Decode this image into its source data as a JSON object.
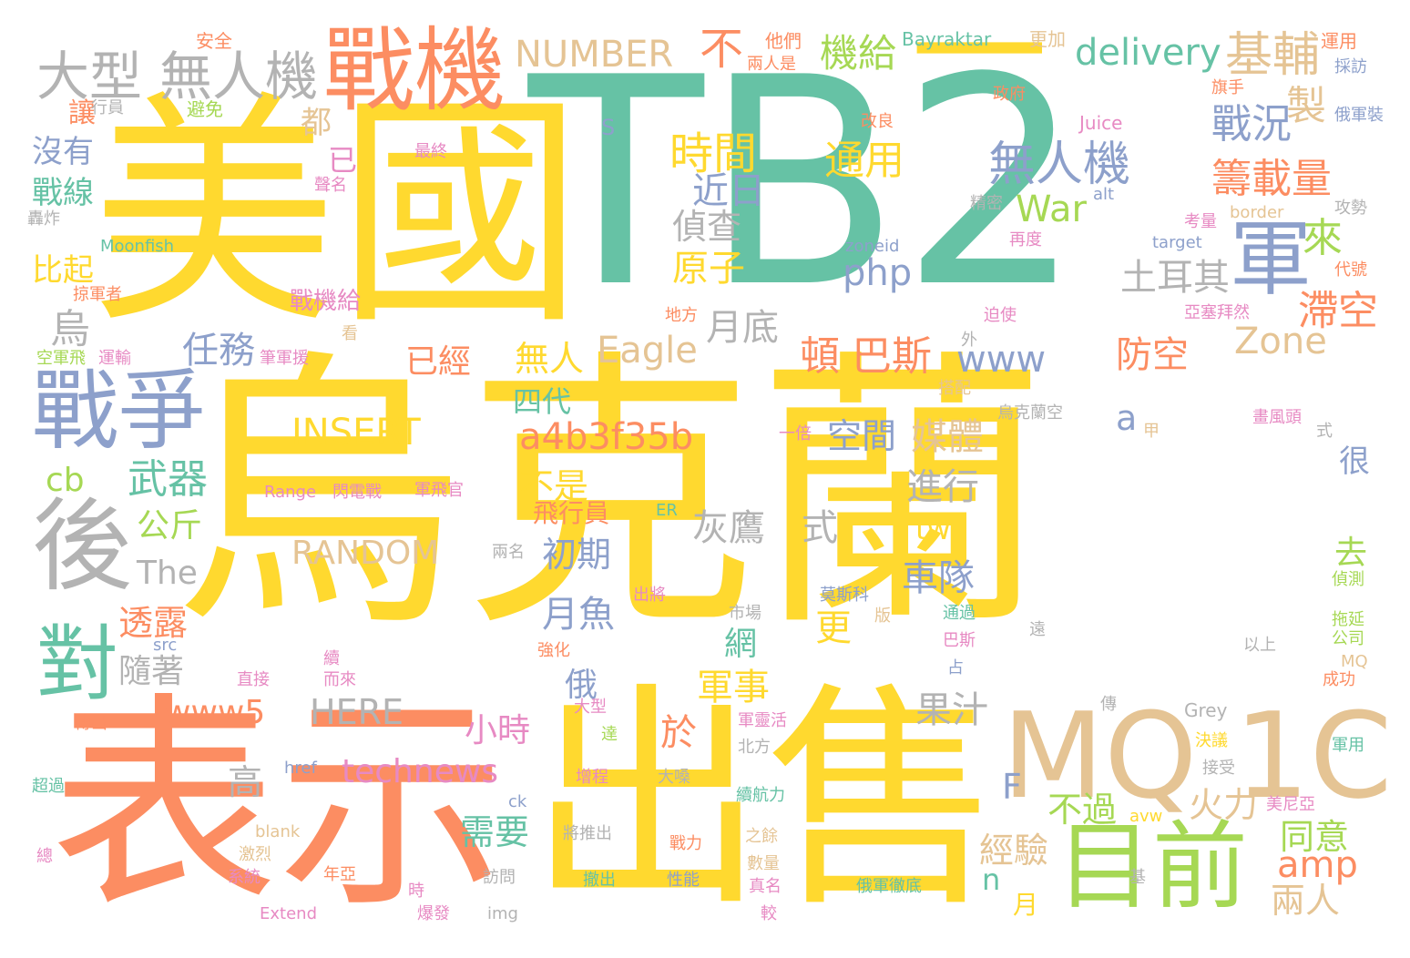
{
  "colors": {
    "yellow": "#FFD92F",
    "green": "#66C2A5",
    "orange": "#FC8D62",
    "blue": "#8DA0CB",
    "gray": "#B3B3B3",
    "tan": "#E5C494",
    "lime": "#A6D854",
    "pink": "#E78AC3"
  },
  "words": [
    {
      "text": "烏克蘭",
      "color": "yellow"
    },
    {
      "text": "TB2",
      "color": "green"
    },
    {
      "text": "美國",
      "color": "yellow"
    },
    {
      "text": "表示",
      "color": "orange"
    },
    {
      "text": "出售",
      "color": "yellow"
    },
    {
      "text": "MQ",
      "color": "tan"
    },
    {
      "text": "1C",
      "color": "tan"
    },
    {
      "text": "戰機",
      "color": "orange"
    },
    {
      "text": "後",
      "color": "gray"
    },
    {
      "text": "戰爭",
      "color": "blue"
    },
    {
      "text": "目前",
      "color": "lime"
    },
    {
      "text": "軍",
      "color": "blue"
    },
    {
      "text": "一",
      "color": "yellow"
    },
    {
      "text": "對",
      "color": "green"
    },
    {
      "text": "大型",
      "color": "gray"
    },
    {
      "text": "無人機",
      "color": "gray"
    },
    {
      "text": "基輔",
      "color": "tan"
    },
    {
      "text": "無人機",
      "color": "blue"
    },
    {
      "text": "NUMBER",
      "color": "tan"
    },
    {
      "text": "delivery",
      "color": "green"
    },
    {
      "text": "機給",
      "color": "lime"
    },
    {
      "text": "不",
      "color": "orange"
    },
    {
      "text": "時間",
      "color": "yellow"
    },
    {
      "text": "戰況",
      "color": "blue"
    },
    {
      "text": "籌載量",
      "color": "orange"
    },
    {
      "text": "製",
      "color": "tan"
    },
    {
      "text": "通用",
      "color": "yellow"
    },
    {
      "text": "近日",
      "color": "blue"
    },
    {
      "text": "War",
      "color": "lime"
    },
    {
      "text": "偵查",
      "color": "gray"
    },
    {
      "text": "原子",
      "color": "yellow"
    },
    {
      "text": "php",
      "color": "blue"
    },
    {
      "text": "土耳其",
      "color": "gray"
    },
    {
      "text": "來",
      "color": "lime"
    },
    {
      "text": "滯空",
      "color": "orange"
    },
    {
      "text": "月底",
      "color": "gray"
    },
    {
      "text": "頓",
      "color": "orange"
    },
    {
      "text": "巴斯",
      "color": "orange"
    },
    {
      "text": "www",
      "color": "blue"
    },
    {
      "text": "Zone",
      "color": "tan"
    },
    {
      "text": "防空",
      "color": "orange"
    },
    {
      "text": "Eagle",
      "color": "tan"
    },
    {
      "text": "無人",
      "color": "yellow"
    },
    {
      "text": "已經",
      "color": "orange"
    },
    {
      "text": "任務",
      "color": "blue"
    },
    {
      "text": "烏",
      "color": "gray"
    },
    {
      "text": "INSERT",
      "color": "yellow"
    },
    {
      "text": "a4b3f35b",
      "color": "orange"
    },
    {
      "text": "空間",
      "color": "blue"
    },
    {
      "text": "媒體",
      "color": "tan"
    },
    {
      "text": "四代",
      "color": "green"
    },
    {
      "text": "a",
      "color": "blue"
    },
    {
      "text": "武器",
      "color": "green"
    },
    {
      "text": "cb",
      "color": "lime"
    },
    {
      "text": "不是",
      "color": "yellow"
    },
    {
      "text": "進行",
      "color": "gray"
    },
    {
      "text": "公斤",
      "color": "lime"
    },
    {
      "text": "灰鷹",
      "color": "gray"
    },
    {
      "text": "式",
      "color": "gray"
    },
    {
      "text": "飛行員",
      "color": "orange"
    },
    {
      "text": "tw",
      "color": "yellow"
    },
    {
      "text": "RANDOM",
      "color": "tan"
    },
    {
      "text": "初期",
      "color": "blue"
    },
    {
      "text": "車隊",
      "color": "blue"
    },
    {
      "text": "The",
      "color": "gray"
    },
    {
      "text": "去",
      "color": "lime"
    },
    {
      "text": "月魚",
      "color": "blue"
    },
    {
      "text": "透露",
      "color": "orange"
    },
    {
      "text": "更",
      "color": "yellow"
    },
    {
      "text": "網",
      "color": "green"
    },
    {
      "text": "隨著",
      "color": "gray"
    },
    {
      "text": "俄",
      "color": "blue"
    },
    {
      "text": "軍事",
      "color": "yellow"
    },
    {
      "text": "果汁",
      "color": "gray"
    },
    {
      "text": "www5",
      "color": "orange"
    },
    {
      "text": "HERE",
      "color": "gray"
    },
    {
      "text": "小時",
      "color": "pink"
    },
    {
      "text": "於",
      "color": "orange"
    },
    {
      "text": "technews",
      "color": "pink"
    },
    {
      "text": "高",
      "color": "gray"
    },
    {
      "text": "F",
      "color": "blue"
    },
    {
      "text": "不過",
      "color": "lime"
    },
    {
      "text": "火力",
      "color": "tan"
    },
    {
      "text": "同意",
      "color": "lime"
    },
    {
      "text": "需要",
      "color": "green"
    },
    {
      "text": "經驗",
      "color": "tan"
    },
    {
      "text": "amp",
      "color": "orange"
    },
    {
      "text": "n",
      "color": "green"
    },
    {
      "text": "兩人",
      "color": "tan"
    },
    {
      "text": "很",
      "color": "blue"
    },
    {
      "text": "月",
      "color": "yellow"
    },
    {
      "text": "沒有",
      "color": "blue"
    },
    {
      "text": "戰線",
      "color": "green"
    },
    {
      "text": "比起",
      "color": "yellow"
    },
    {
      "text": "讓",
      "color": "orange"
    },
    {
      "text": "都",
      "color": "tan"
    },
    {
      "text": "已",
      "color": "pink"
    },
    {
      "text": "戰機給",
      "color": "pink"
    },
    {
      "text": "S",
      "color": "blue"
    },
    {
      "text": "安全",
      "color": "orange"
    },
    {
      "text": "他們",
      "color": "orange"
    },
    {
      "text": "Bayraktar",
      "color": "green"
    },
    {
      "text": "更加",
      "color": "tan"
    },
    {
      "text": "運用",
      "color": "orange"
    },
    {
      "text": "兩人是",
      "color": "orange"
    },
    {
      "text": "採訪",
      "color": "blue"
    },
    {
      "text": "政府",
      "color": "orange"
    },
    {
      "text": "旗手",
      "color": "orange"
    },
    {
      "text": "改良",
      "color": "orange"
    },
    {
      "text": "Juice",
      "color": "pink"
    },
    {
      "text": "俄軍裝",
      "color": "blue"
    },
    {
      "text": "最終",
      "color": "pink"
    },
    {
      "text": "聲名",
      "color": "pink"
    },
    {
      "text": "行員",
      "color": "gray"
    },
    {
      "text": "避免",
      "color": "lime"
    },
    {
      "text": "精密",
      "color": "gray"
    },
    {
      "text": "alt",
      "color": "blue"
    },
    {
      "text": "border",
      "color": "tan"
    },
    {
      "text": "攻勢",
      "color": "gray"
    },
    {
      "text": "轟炸",
      "color": "gray"
    },
    {
      "text": "Moonfish",
      "color": "green"
    },
    {
      "text": "zoneid",
      "color": "blue"
    },
    {
      "text": "再度",
      "color": "pink"
    },
    {
      "text": "target",
      "color": "blue"
    },
    {
      "text": "考量",
      "color": "pink"
    },
    {
      "text": "代號",
      "color": "orange"
    },
    {
      "text": "掠軍者",
      "color": "orange"
    },
    {
      "text": "看",
      "color": "tan"
    },
    {
      "text": "地方",
      "color": "orange"
    },
    {
      "text": "迫使",
      "color": "pink"
    },
    {
      "text": "亞塞拜然",
      "color": "pink"
    },
    {
      "text": "外",
      "color": "gray"
    },
    {
      "text": "空軍飛",
      "color": "lime"
    },
    {
      "text": "運輸",
      "color": "pink"
    },
    {
      "text": "筆軍援",
      "color": "pink"
    },
    {
      "text": "搭配",
      "color": "tan"
    },
    {
      "text": "烏克蘭空",
      "color": "gray"
    },
    {
      "text": "畫風頭",
      "color": "pink"
    },
    {
      "text": "一倍",
      "color": "pink"
    },
    {
      "text": "甲",
      "color": "tan"
    },
    {
      "text": "式",
      "color": "gray"
    },
    {
      "text": "Range",
      "color": "pink"
    },
    {
      "text": "閃電戰",
      "color": "pink"
    },
    {
      "text": "軍飛官",
      "color": "pink"
    },
    {
      "text": "ER",
      "color": "green"
    },
    {
      "text": "兩名",
      "color": "gray"
    },
    {
      "text": "偵測",
      "color": "lime"
    },
    {
      "text": "出將",
      "color": "pink"
    },
    {
      "text": "市場",
      "color": "gray"
    },
    {
      "text": "莫斯科",
      "color": "blue"
    },
    {
      "text": "版",
      "color": "tan"
    },
    {
      "text": "通過",
      "color": "green"
    },
    {
      "text": "巴斯",
      "color": "pink"
    },
    {
      "text": "遠",
      "color": "gray"
    },
    {
      "text": "拖延",
      "color": "lime"
    },
    {
      "text": "公司",
      "color": "lime"
    },
    {
      "text": "src",
      "color": "blue"
    },
    {
      "text": "續",
      "color": "pink"
    },
    {
      "text": "強化",
      "color": "orange"
    },
    {
      "text": "而來",
      "color": "pink"
    },
    {
      "text": "直接",
      "color": "pink"
    },
    {
      "text": "占",
      "color": "blue"
    },
    {
      "text": "以上",
      "color": "gray"
    },
    {
      "text": "MQ",
      "color": "tan"
    },
    {
      "text": "成功",
      "color": "orange"
    },
    {
      "text": "傳出",
      "color": "orange"
    },
    {
      "text": "大型",
      "color": "pink"
    },
    {
      "text": "軍靈活",
      "color": "pink"
    },
    {
      "text": "傳",
      "color": "gray"
    },
    {
      "text": "Grey",
      "color": "gray"
    },
    {
      "text": "決議",
      "color": "yellow"
    },
    {
      "text": "軍用",
      "color": "green"
    },
    {
      "text": "達",
      "color": "lime"
    },
    {
      "text": "北方",
      "color": "gray"
    },
    {
      "text": "接受",
      "color": "gray"
    },
    {
      "text": "超過",
      "color": "green"
    },
    {
      "text": "href",
      "color": "blue"
    },
    {
      "text": "增程",
      "color": "pink"
    },
    {
      "text": "大嗓",
      "color": "gray"
    },
    {
      "text": "續航力",
      "color": "green"
    },
    {
      "text": "ck",
      "color": "blue"
    },
    {
      "text": "avw",
      "color": "yellow"
    },
    {
      "text": "美尼亞",
      "color": "pink"
    },
    {
      "text": "blank",
      "color": "tan"
    },
    {
      "text": "將推出",
      "color": "gray"
    },
    {
      "text": "戰力",
      "color": "orange"
    },
    {
      "text": "之餘",
      "color": "tan"
    },
    {
      "text": "激烈",
      "color": "tan"
    },
    {
      "text": "總",
      "color": "pink"
    },
    {
      "text": "系統",
      "color": "pink"
    },
    {
      "text": "年亞",
      "color": "orange"
    },
    {
      "text": "撤出",
      "color": "green"
    },
    {
      "text": "性能",
      "color": "blue"
    },
    {
      "text": "數量",
      "color": "tan"
    },
    {
      "text": "真名",
      "color": "pink"
    },
    {
      "text": "基",
      "color": "gray"
    },
    {
      "text": "俄軍徹底",
      "color": "green"
    },
    {
      "text": "訪問",
      "color": "gray"
    },
    {
      "text": "時",
      "color": "pink"
    },
    {
      "text": "Extend",
      "color": "pink"
    },
    {
      "text": "爆發",
      "color": "pink"
    },
    {
      "text": "img",
      "color": "gray"
    },
    {
      "text": "較",
      "color": "pink"
    }
  ]
}
